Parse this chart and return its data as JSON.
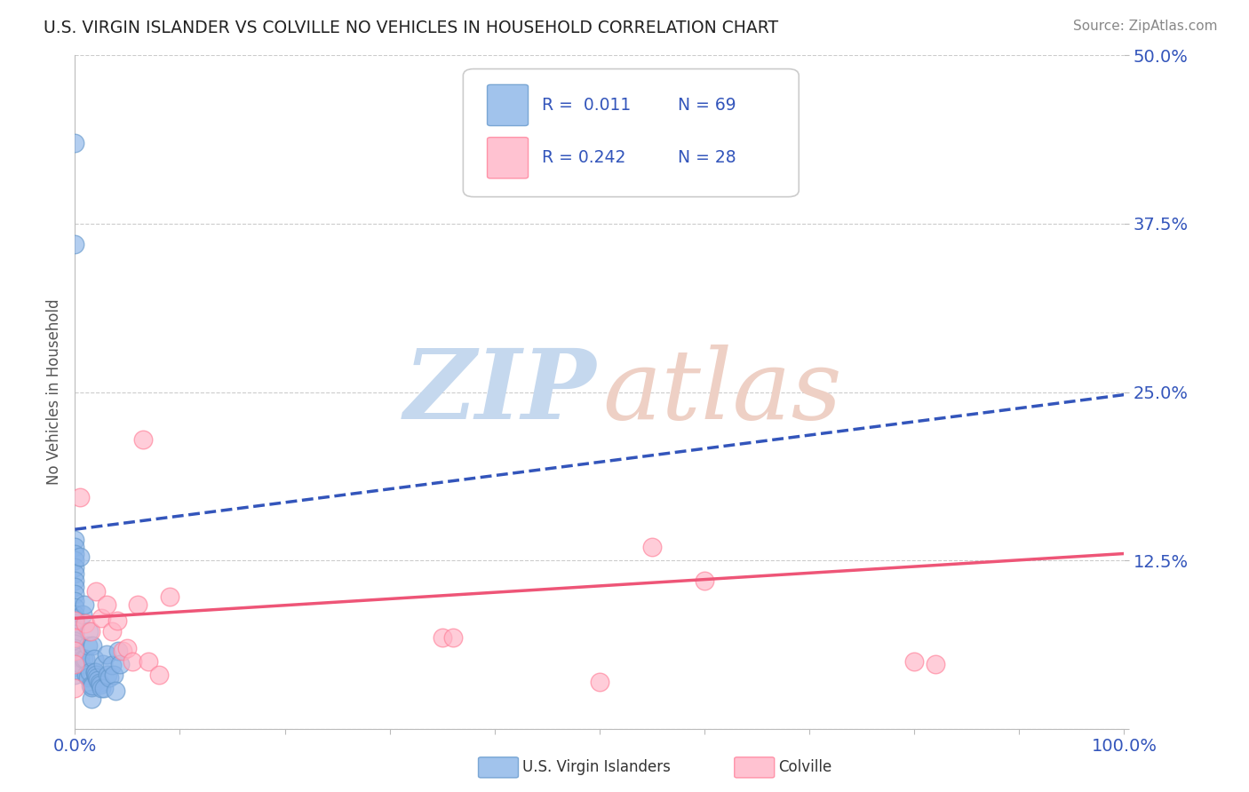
{
  "title": "U.S. VIRGIN ISLANDER VS COLVILLE NO VEHICLES IN HOUSEHOLD CORRELATION CHART",
  "source": "Source: ZipAtlas.com",
  "ylabel": "No Vehicles in Household",
  "xlim": [
    0,
    1.0
  ],
  "ylim": [
    0,
    0.5
  ],
  "yticks": [
    0.0,
    0.125,
    0.25,
    0.375,
    0.5
  ],
  "ytick_labels": [
    "",
    "12.5%",
    "25.0%",
    "37.5%",
    "50.0%"
  ],
  "legend_r1": "R =  0.011",
  "legend_n1": "N = 69",
  "legend_r2": "R = 0.242",
  "legend_n2": "N = 28",
  "blue_color": "#8AB4E8",
  "blue_edge_color": "#6699CC",
  "pink_color": "#FFB3C6",
  "pink_edge_color": "#FF8099",
  "trend_blue_color": "#3355BB",
  "trend_pink_color": "#EE5577",
  "legend_text_color": "#3355BB",
  "axis_text_color": "#3355BB",
  "blue_x": [
    0.0,
    0.0,
    0.0,
    0.0,
    0.0,
    0.0,
    0.0,
    0.0,
    0.0,
    0.0,
    0.0,
    0.0,
    0.0,
    0.0,
    0.0,
    0.0,
    0.0,
    0.0,
    0.0,
    0.0,
    0.0,
    0.0,
    0.0,
    0.0,
    0.0,
    0.0,
    0.0,
    0.0,
    0.0,
    0.0,
    0.0,
    0.0,
    0.0,
    0.005,
    0.005,
    0.006,
    0.007,
    0.008,
    0.009,
    0.01,
    0.011,
    0.012,
    0.012,
    0.013,
    0.014,
    0.015,
    0.016,
    0.016,
    0.017,
    0.017,
    0.018,
    0.019,
    0.019,
    0.02,
    0.021,
    0.022,
    0.023,
    0.024,
    0.025,
    0.027,
    0.028,
    0.03,
    0.031,
    0.033,
    0.035,
    0.037,
    0.039,
    0.041,
    0.043
  ],
  "blue_y": [
    0.435,
    0.36,
    0.14,
    0.135,
    0.13,
    0.125,
    0.12,
    0.115,
    0.11,
    0.105,
    0.1,
    0.095,
    0.09,
    0.085,
    0.082,
    0.08,
    0.078,
    0.075,
    0.073,
    0.07,
    0.068,
    0.065,
    0.063,
    0.06,
    0.058,
    0.056,
    0.054,
    0.052,
    0.05,
    0.048,
    0.046,
    0.044,
    0.04,
    0.128,
    0.053,
    0.048,
    0.085,
    0.052,
    0.092,
    0.052,
    0.04,
    0.062,
    0.038,
    0.072,
    0.042,
    0.032,
    0.022,
    0.031,
    0.062,
    0.032,
    0.052,
    0.042,
    0.042,
    0.04,
    0.038,
    0.036,
    0.034,
    0.033,
    0.03,
    0.048,
    0.03,
    0.055,
    0.04,
    0.038,
    0.047,
    0.04,
    0.028,
    0.058,
    0.048
  ],
  "pink_x": [
    0.0,
    0.0,
    0.0,
    0.0,
    0.0,
    0.005,
    0.01,
    0.015,
    0.02,
    0.025,
    0.03,
    0.035,
    0.04,
    0.045,
    0.05,
    0.055,
    0.06,
    0.065,
    0.07,
    0.08,
    0.09,
    0.35,
    0.36,
    0.5,
    0.55,
    0.6,
    0.8,
    0.82
  ],
  "pink_y": [
    0.08,
    0.068,
    0.058,
    0.048,
    0.03,
    0.172,
    0.078,
    0.072,
    0.102,
    0.082,
    0.092,
    0.072,
    0.08,
    0.058,
    0.06,
    0.05,
    0.092,
    0.215,
    0.05,
    0.04,
    0.098,
    0.068,
    0.068,
    0.035,
    0.135,
    0.11,
    0.05,
    0.048
  ],
  "blue_trend_x": [
    0.0,
    1.0
  ],
  "blue_trend_y": [
    0.148,
    0.248
  ],
  "pink_trend_x": [
    0.0,
    1.0
  ],
  "pink_trend_y": [
    0.082,
    0.13
  ],
  "watermark_zip_color": "#C5D8EE",
  "watermark_atlas_color": "#EED0C5",
  "bottom_legend_labels": [
    "U.S. Virgin Islanders",
    "Colville"
  ]
}
